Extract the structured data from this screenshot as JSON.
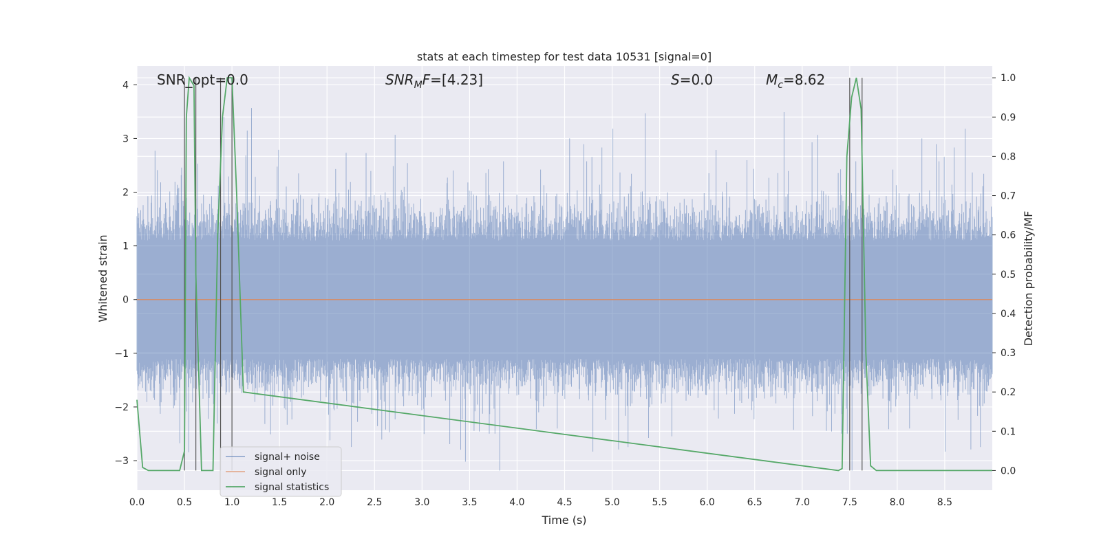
{
  "chart_data": {
    "type": "line",
    "title": "stats at each timestep for test data 10531 [signal=0]",
    "xlabel": "Time (s)",
    "ylabel": "Whitened strain",
    "ylabel_right": "Detection probability/MF",
    "xlim": [
      0.0,
      9.0
    ],
    "ylim": [
      -3.55,
      4.35
    ],
    "ylim_right": [
      -0.05,
      1.03
    ],
    "x_ticks": [
      "0.0",
      "0.5",
      "1.0",
      "1.5",
      "2.0",
      "2.5",
      "3.0",
      "3.5",
      "4.0",
      "4.5",
      "5.0",
      "5.5",
      "6.0",
      "6.5",
      "7.0",
      "7.5",
      "8.0",
      "8.5"
    ],
    "y_ticks": [
      "−3",
      "−2",
      "−1",
      "0",
      "1",
      "2",
      "3",
      "4"
    ],
    "y_ticks_right": [
      "0.0",
      "0.1",
      "0.2",
      "0.3",
      "0.4",
      "0.5",
      "0.6",
      "0.7",
      "0.8",
      "0.9",
      "1.0"
    ],
    "grid": true,
    "legend_position": "bottom-left",
    "annotations": {
      "snr_opt": "SNR_opt=0.0",
      "snr_mf_base": "SNR",
      "snr_mf_sub": "M",
      "snr_mf_mid": "F",
      "snr_mf_value": "=[4.23]",
      "s_italic": "S",
      "s_value": "=0.0",
      "mc_base": "M",
      "mc_sub": "c",
      "mc_value": "=8.62"
    },
    "series": [
      {
        "name": "signal+ noise",
        "color": "#4c72b0",
        "axis": "left",
        "description": "whitened strain noise, roughly symmetric around 0, amplitude mostly within ±2 with peaks to about 4 and troughs to about −3"
      },
      {
        "name": "signal only",
        "color": "#dd8452",
        "axis": "left",
        "x": [
          0.0,
          9.0
        ],
        "y": [
          0.0,
          0.0
        ]
      },
      {
        "name": "signal statistics",
        "color": "#55a868",
        "axis": "right",
        "x": [
          0.0,
          0.06,
          0.12,
          0.45,
          0.5,
          0.52,
          0.55,
          0.6,
          0.62,
          0.68,
          0.8,
          0.85,
          0.9,
          0.95,
          1.0,
          1.05,
          1.12,
          7.38,
          7.42,
          7.47,
          7.52,
          7.57,
          7.62,
          7.67,
          7.72,
          7.78,
          9.0
        ],
        "y": [
          0.18,
          0.008,
          0.0,
          0.0,
          0.05,
          0.9,
          1.0,
          0.98,
          0.5,
          0.0,
          0.0,
          0.6,
          0.9,
          1.0,
          1.0,
          0.7,
          0.2,
          0.0,
          0.005,
          0.8,
          0.95,
          1.0,
          0.92,
          0.3,
          0.012,
          0.0,
          0.0
        ]
      }
    ],
    "vertical_markers": [
      0.5,
      0.62,
      0.88,
      1.0,
      7.5,
      7.63
    ]
  }
}
